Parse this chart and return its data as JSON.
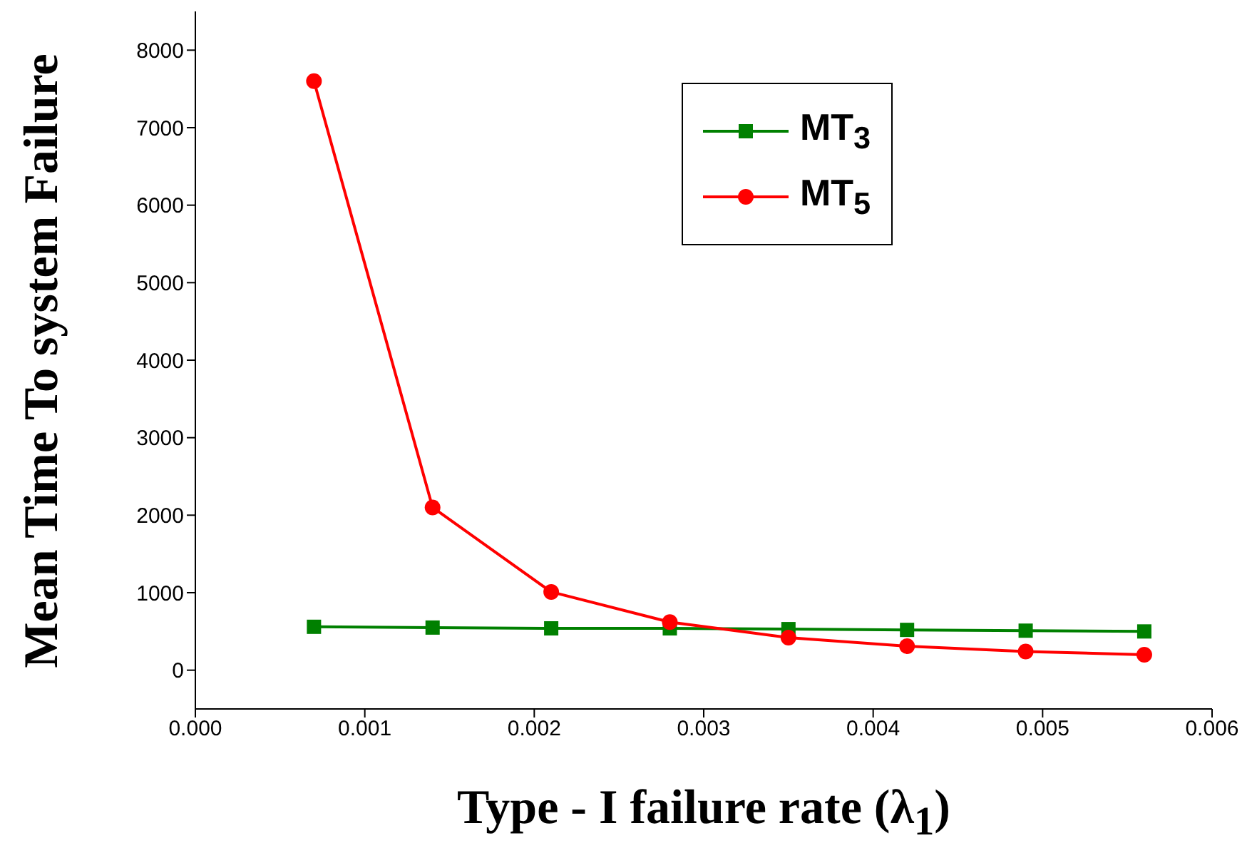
{
  "chart_data": {
    "type": "line",
    "xlabel": "Type - I failure rate (λ$_{1}$)",
    "ylabel": "Mean Time To system Failure",
    "x": [
      0.0007,
      0.0014,
      0.0021,
      0.0028,
      0.0035,
      0.0042,
      0.0049,
      0.0056
    ],
    "series": [
      {
        "name": "MT$_{3}$",
        "color": "#008000",
        "marker": "square",
        "values": [
          560,
          550,
          540,
          540,
          530,
          520,
          510,
          500
        ]
      },
      {
        "name": "MT$_{5}$",
        "color": "#ff0000",
        "marker": "circle",
        "values": [
          7600,
          2100,
          1010,
          620,
          420,
          310,
          240,
          200
        ]
      }
    ],
    "xlim": [
      0,
      0.006
    ],
    "xticks": [
      {
        "value": 0,
        "label": "0.000"
      },
      {
        "value": 0.001,
        "label": "0.001"
      },
      {
        "value": 0.002,
        "label": "0.002"
      },
      {
        "value": 0.003,
        "label": "0.003"
      },
      {
        "value": 0.004,
        "label": "0.004"
      },
      {
        "value": 0.005,
        "label": "0.005"
      },
      {
        "value": 0.006,
        "label": "0.006"
      }
    ],
    "ylim": [
      -500,
      8500
    ],
    "yticks": [
      0,
      1000,
      2000,
      3000,
      4000,
      5000,
      6000,
      7000,
      8000
    ],
    "grid": false,
    "legend": "top right",
    "line_style": "solid"
  }
}
